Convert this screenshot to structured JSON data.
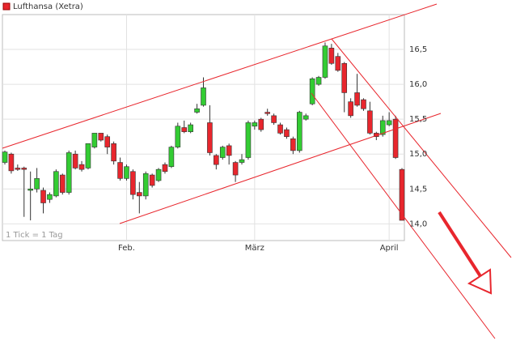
{
  "chart_data": {
    "type": "candlestick",
    "title": "Lufthansa (Xetra)",
    "note": "1 Tick = 1 Tag",
    "categories": [
      null,
      null,
      null,
      null,
      null,
      null,
      null,
      null,
      null,
      null,
      null,
      null,
      null,
      null,
      null,
      null,
      null,
      null,
      null,
      "Feb.",
      null,
      null,
      null,
      null,
      null,
      null,
      null,
      null,
      null,
      null,
      null,
      null,
      null,
      null,
      null,
      null,
      null,
      null,
      null,
      "März",
      null,
      null,
      null,
      null,
      null,
      null,
      null,
      null,
      null,
      null,
      null,
      null,
      null,
      null,
      null,
      null,
      null,
      null,
      null,
      null,
      "April",
      null,
      null
    ],
    "open": [
      14.88,
      15.0,
      14.8,
      14.8,
      14.48,
      14.5,
      14.48,
      14.35,
      14.4,
      14.7,
      14.45,
      15.0,
      14.85,
      14.8,
      15.1,
      15.3,
      15.25,
      15.15,
      14.88,
      14.65,
      14.75,
      14.45,
      14.4,
      14.7,
      14.62,
      14.85,
      14.82,
      15.1,
      15.38,
      15.32,
      15.6,
      15.7,
      15.45,
      14.98,
      14.95,
      15.12,
      14.88,
      14.88,
      14.95,
      15.4,
      15.5,
      15.6,
      15.55,
      15.42,
      15.35,
      15.22,
      15.05,
      15.5,
      15.72,
      16.0,
      16.1,
      16.52,
      16.4,
      16.3,
      15.75,
      15.88,
      15.78,
      15.62,
      15.3,
      15.28,
      15.42,
      15.5,
      14.78
    ],
    "high": [
      15.05,
      15.02,
      14.85,
      14.82,
      14.75,
      14.8,
      14.52,
      14.45,
      14.78,
      14.72,
      15.05,
      15.05,
      14.9,
      15.15,
      15.3,
      15.3,
      15.28,
      15.18,
      14.95,
      14.85,
      14.78,
      14.6,
      14.75,
      14.72,
      14.8,
      14.88,
      15.12,
      15.45,
      15.48,
      15.45,
      15.72,
      16.1,
      15.7,
      15.0,
      15.12,
      15.15,
      14.9,
      15.0,
      15.48,
      15.48,
      15.52,
      15.65,
      15.58,
      15.45,
      15.38,
      15.25,
      15.62,
      15.58,
      16.1,
      16.12,
      16.6,
      16.58,
      16.45,
      16.32,
      15.8,
      16.15,
      15.8,
      15.75,
      15.32,
      15.55,
      15.6,
      15.55,
      14.8
    ],
    "low": [
      14.85,
      14.72,
      14.76,
      14.1,
      14.05,
      14.45,
      14.15,
      14.3,
      14.38,
      14.42,
      14.42,
      14.78,
      14.75,
      14.78,
      15.08,
      15.18,
      15.0,
      14.85,
      14.62,
      14.62,
      14.35,
      14.15,
      14.35,
      14.52,
      14.6,
      14.72,
      14.8,
      15.08,
      15.3,
      15.3,
      15.58,
      15.68,
      14.98,
      14.78,
      14.92,
      14.85,
      14.6,
      14.85,
      14.92,
      15.35,
      15.32,
      15.55,
      15.42,
      15.28,
      15.22,
      15.0,
      15.02,
      15.48,
      15.7,
      15.98,
      16.08,
      16.28,
      16.18,
      15.6,
      15.52,
      15.68,
      15.62,
      15.28,
      15.2,
      15.25,
      15.4,
      14.93,
      14.05
    ],
    "close": [
      15.03,
      14.76,
      14.78,
      14.78,
      14.5,
      14.65,
      14.3,
      14.42,
      14.75,
      14.45,
      15.02,
      14.8,
      14.78,
      15.15,
      15.3,
      15.2,
      15.1,
      14.9,
      14.65,
      14.82,
      14.42,
      14.4,
      14.72,
      14.55,
      14.78,
      14.75,
      15.1,
      15.4,
      15.32,
      15.42,
      15.65,
      15.95,
      15.02,
      14.85,
      15.1,
      14.98,
      14.7,
      14.92,
      15.45,
      15.45,
      15.35,
      15.58,
      15.45,
      15.3,
      15.25,
      15.05,
      15.6,
      15.55,
      16.08,
      16.1,
      16.55,
      16.3,
      16.2,
      15.88,
      15.55,
      15.7,
      15.65,
      15.3,
      15.25,
      15.48,
      15.48,
      14.95,
      14.05
    ],
    "up_color": "#33cc33",
    "down_color": "#e8262d",
    "ylim": [
      13.76,
      17.0
    ],
    "yticks": [
      {
        "value": 14,
        "label": "14,0"
      },
      {
        "value": 14.5,
        "label": "14,5"
      },
      {
        "value": 15,
        "label": "15,0"
      },
      {
        "value": 15.5,
        "label": "15,5"
      },
      {
        "value": 16,
        "label": "16,0"
      },
      {
        "value": 16.5,
        "label": "16,5"
      }
    ],
    "grid": true
  }
}
